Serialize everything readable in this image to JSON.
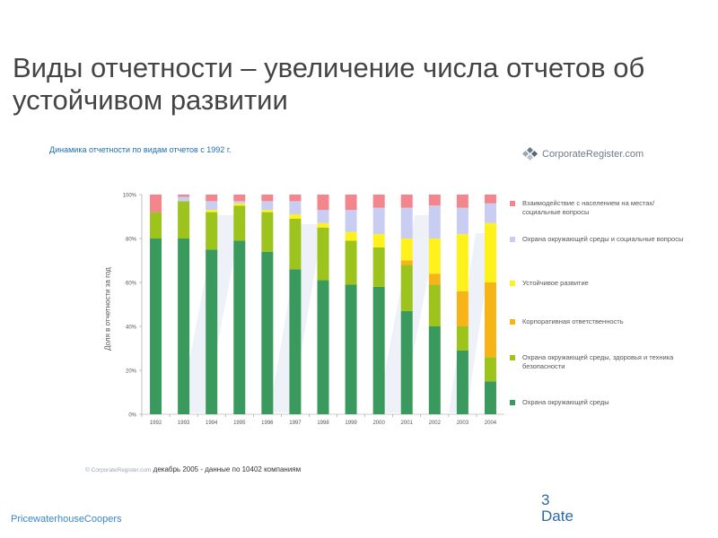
{
  "slide": {
    "title": "Виды отчетности – увеличение числа отчетов об устойчивом развитии",
    "subtitle": "Динамика отчетности по видам отчетов с 1992 г.",
    "logo_text": "CorporateRegister.com",
    "source_copyright": "© CorporateRegister.com",
    "source_text": " декабрь 2005 - данные по 10402 компаниям",
    "page_number": "3",
    "date_label": "Date",
    "footer_brand": "PricewaterhouseCoopers"
  },
  "colors": {
    "title": "#444444",
    "subtitle": "#1f6fae",
    "footer": "#3a86c9"
  },
  "chart_data": {
    "type": "bar",
    "stacked": true,
    "normalized": true,
    "title": "Динамика отчетности по видам отчетов с 1992 г.",
    "xlabel": "",
    "ylabel": "Доля в отчетности за год",
    "ylim": [
      0,
      100
    ],
    "yticks": [
      "0%",
      "20%",
      "40%",
      "60%",
      "80%",
      "100%"
    ],
    "categories": [
      "1992",
      "1993",
      "1994",
      "1995",
      "1996",
      "1997",
      "1998",
      "1999",
      "2000",
      "2001",
      "2002",
      "2003",
      "2004"
    ],
    "series": [
      {
        "name": "Охрана окружающей среды",
        "color": "#3a9a5e",
        "values": [
          80,
          80,
          75,
          79,
          74,
          66,
          61,
          59,
          58,
          47,
          40,
          29,
          15
        ]
      },
      {
        "name": "Охрана окружающей среды, здоровья и техника безопасности",
        "color": "#9cc41c",
        "values": [
          12,
          17,
          17,
          16,
          18,
          23,
          24,
          20,
          18,
          21,
          19,
          11,
          11
        ]
      },
      {
        "name": "Корпоративная ответственность",
        "color": "#f7b418",
        "values": [
          0,
          0,
          0,
          0,
          0,
          0,
          0,
          0,
          0,
          2,
          5,
          16,
          34
        ]
      },
      {
        "name": "Устойчивое развитие",
        "color": "#fff21c",
        "values": [
          0,
          0,
          1,
          1,
          1,
          2,
          2,
          4,
          6,
          10,
          16,
          26,
          27
        ]
      },
      {
        "name": "Охрана окружающей среды и социальные вопросы",
        "color": "#c9cdf2",
        "values": [
          0,
          2,
          4,
          1,
          4,
          6,
          6,
          10,
          12,
          14,
          15,
          12,
          9
        ]
      },
      {
        "name": "Взаимодействие с населением на местах/ социальные вопросы",
        "color": "#f2868c",
        "values": [
          8,
          1,
          3,
          3,
          3,
          3,
          7,
          7,
          6,
          6,
          5,
          6,
          4
        ]
      }
    ],
    "legend_order": [
      5,
      4,
      3,
      2,
      1,
      0
    ],
    "legend_position": "right"
  }
}
